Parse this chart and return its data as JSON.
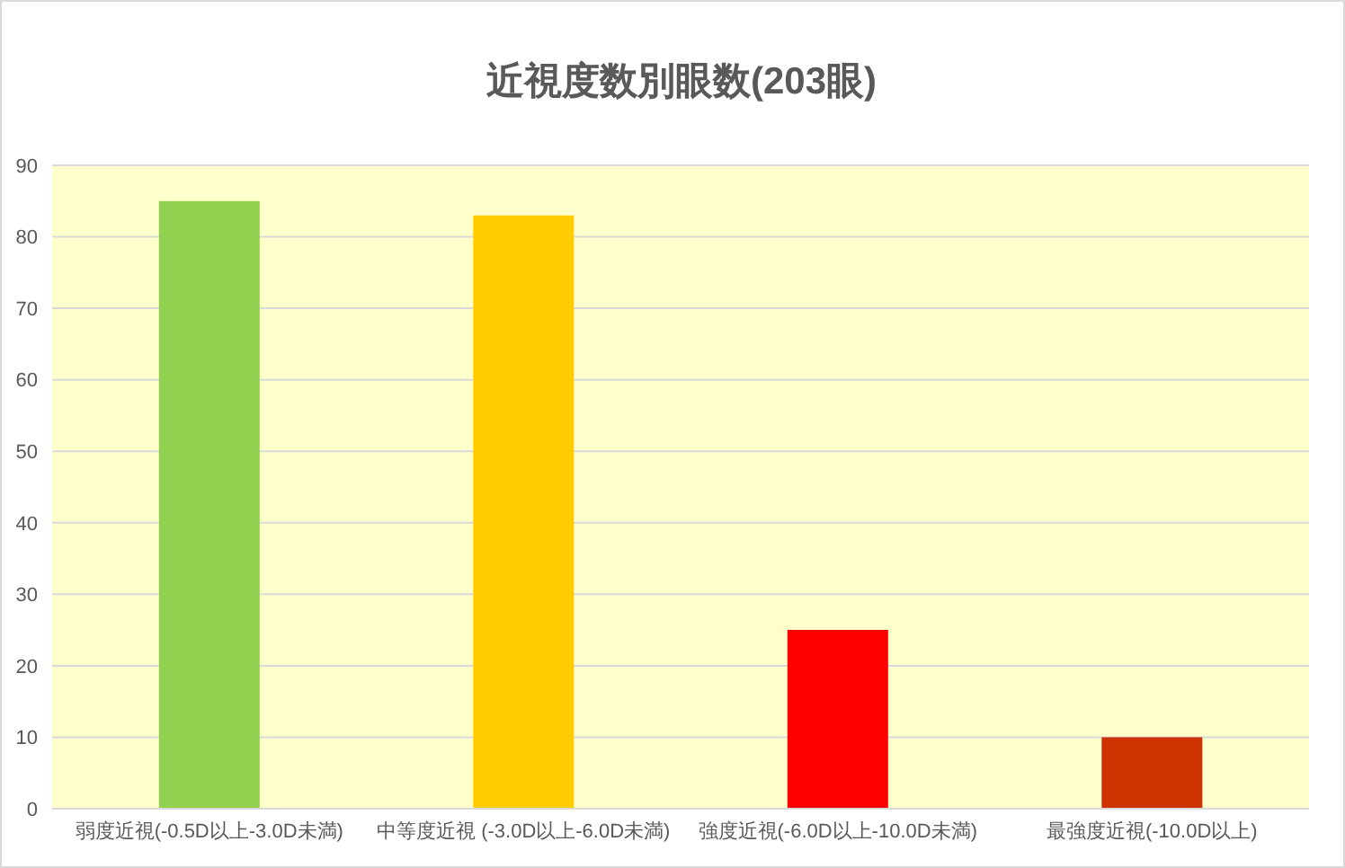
{
  "chart_data": {
    "type": "bar",
    "title": "近視度数別眼数(203眼)",
    "categories": [
      "弱度近視(-0.5D以上-3.0D未満)",
      "中等度近視 (-3.0D以上-6.0D未満)",
      "強度近視(-6.0D以上-10.0D未満)",
      "最強度近視(-10.0D以上)"
    ],
    "values": [
      85,
      83,
      25,
      10
    ],
    "colors": [
      "#92d050",
      "#ffcc00",
      "#ff0000",
      "#cc3300"
    ],
    "ylim": [
      0,
      90
    ],
    "yticks": [
      0,
      10,
      20,
      30,
      40,
      50,
      60,
      70,
      80,
      90
    ],
    "grid": "y"
  }
}
